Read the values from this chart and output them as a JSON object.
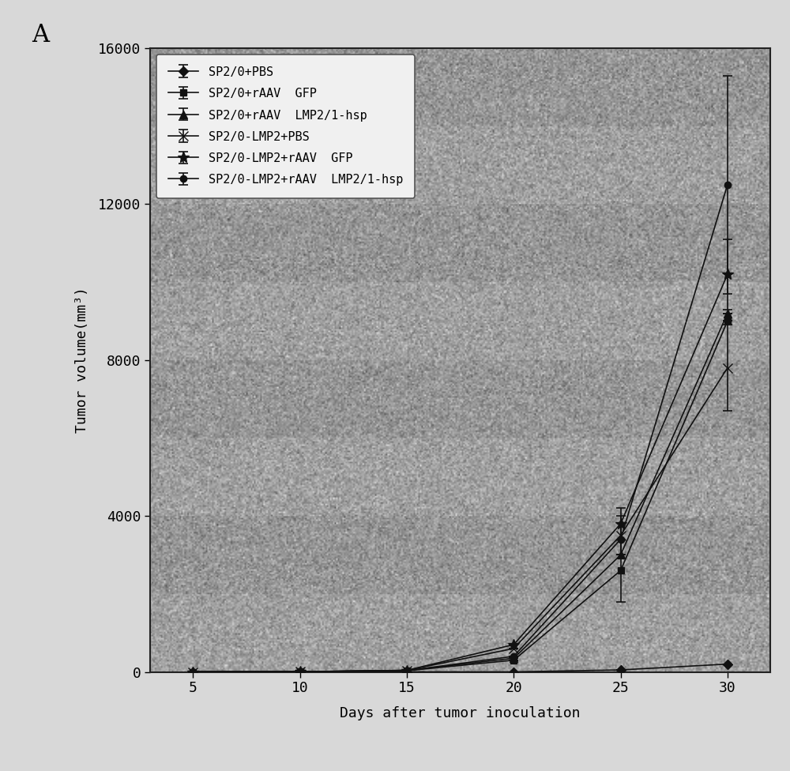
{
  "title_label": "A",
  "xlabel": "Days after tumor inoculation",
  "ylabel": "Tumor volume(mm³)",
  "xlim": [
    3,
    32
  ],
  "ylim": [
    0,
    16000
  ],
  "xticks": [
    5,
    10,
    15,
    20,
    25,
    30
  ],
  "yticks": [
    0,
    4000,
    8000,
    12000,
    16000
  ],
  "x_days": [
    5,
    10,
    15,
    20,
    25,
    30
  ],
  "series": [
    {
      "label": "SP2/0+PBS",
      "marker": "D",
      "markersize": 6,
      "fillstyle": "full",
      "values": [
        0,
        0,
        0,
        0,
        50,
        200
      ],
      "yerr": [
        0,
        0,
        0,
        0,
        0,
        0
      ],
      "linestyle": "-",
      "linewidth": 1.2,
      "color": "#111111",
      "zorder": 6
    },
    {
      "label": "SP2/0+rAAV  GFP",
      "marker": "s",
      "markersize": 6,
      "fillstyle": "full",
      "values": [
        0,
        5,
        30,
        300,
        2600,
        9000
      ],
      "yerr": [
        0,
        0,
        0,
        0,
        800,
        0
      ],
      "linestyle": "-",
      "linewidth": 1.2,
      "color": "#111111",
      "zorder": 5
    },
    {
      "label": "SP2/0+rAAV  LMP2/1-hsp",
      "marker": "^",
      "markersize": 7,
      "fillstyle": "full",
      "values": [
        0,
        5,
        35,
        350,
        3000,
        9200
      ],
      "yerr": [
        0,
        0,
        0,
        0,
        0,
        0
      ],
      "linestyle": "-",
      "linewidth": 1.2,
      "color": "#111111",
      "zorder": 5
    },
    {
      "label": "SP2/0-LMP2+PBS",
      "marker": "x",
      "markersize": 8,
      "fillstyle": "full",
      "values": [
        0,
        5,
        40,
        600,
        3500,
        7800
      ],
      "yerr": [
        0,
        0,
        0,
        0,
        500,
        1100
      ],
      "linestyle": "-",
      "linewidth": 1.2,
      "color": "#111111",
      "zorder": 5
    },
    {
      "label": "SP2/0-LMP2+rAAV  GFP",
      "marker": "*",
      "markersize": 10,
      "fillstyle": "full",
      "values": [
        0,
        5,
        40,
        700,
        3800,
        10200
      ],
      "yerr": [
        0,
        0,
        0,
        0,
        400,
        900
      ],
      "linestyle": "-",
      "linewidth": 1.2,
      "color": "#111111",
      "zorder": 5
    },
    {
      "label": "SP2/0-LMP2+rAAV  LMP2/1-hsp",
      "marker": "o",
      "markersize": 6,
      "fillstyle": "full",
      "values": [
        0,
        5,
        30,
        400,
        3400,
        12500
      ],
      "yerr": [
        0,
        0,
        0,
        0,
        0,
        2800
      ],
      "linestyle": "-",
      "linewidth": 1.2,
      "color": "#111111",
      "zorder": 5
    }
  ],
  "outer_bg_color": "#d8d8d8",
  "plot_bg_color": "#b0b0b0",
  "legend_bg_color": "#f0f0f0",
  "fontsize_axis_label": 13,
  "fontsize_tick": 13,
  "fontsize_legend": 11,
  "fontsize_panel": 22,
  "noise_seed": 42,
  "noise_alpha": 0.25
}
